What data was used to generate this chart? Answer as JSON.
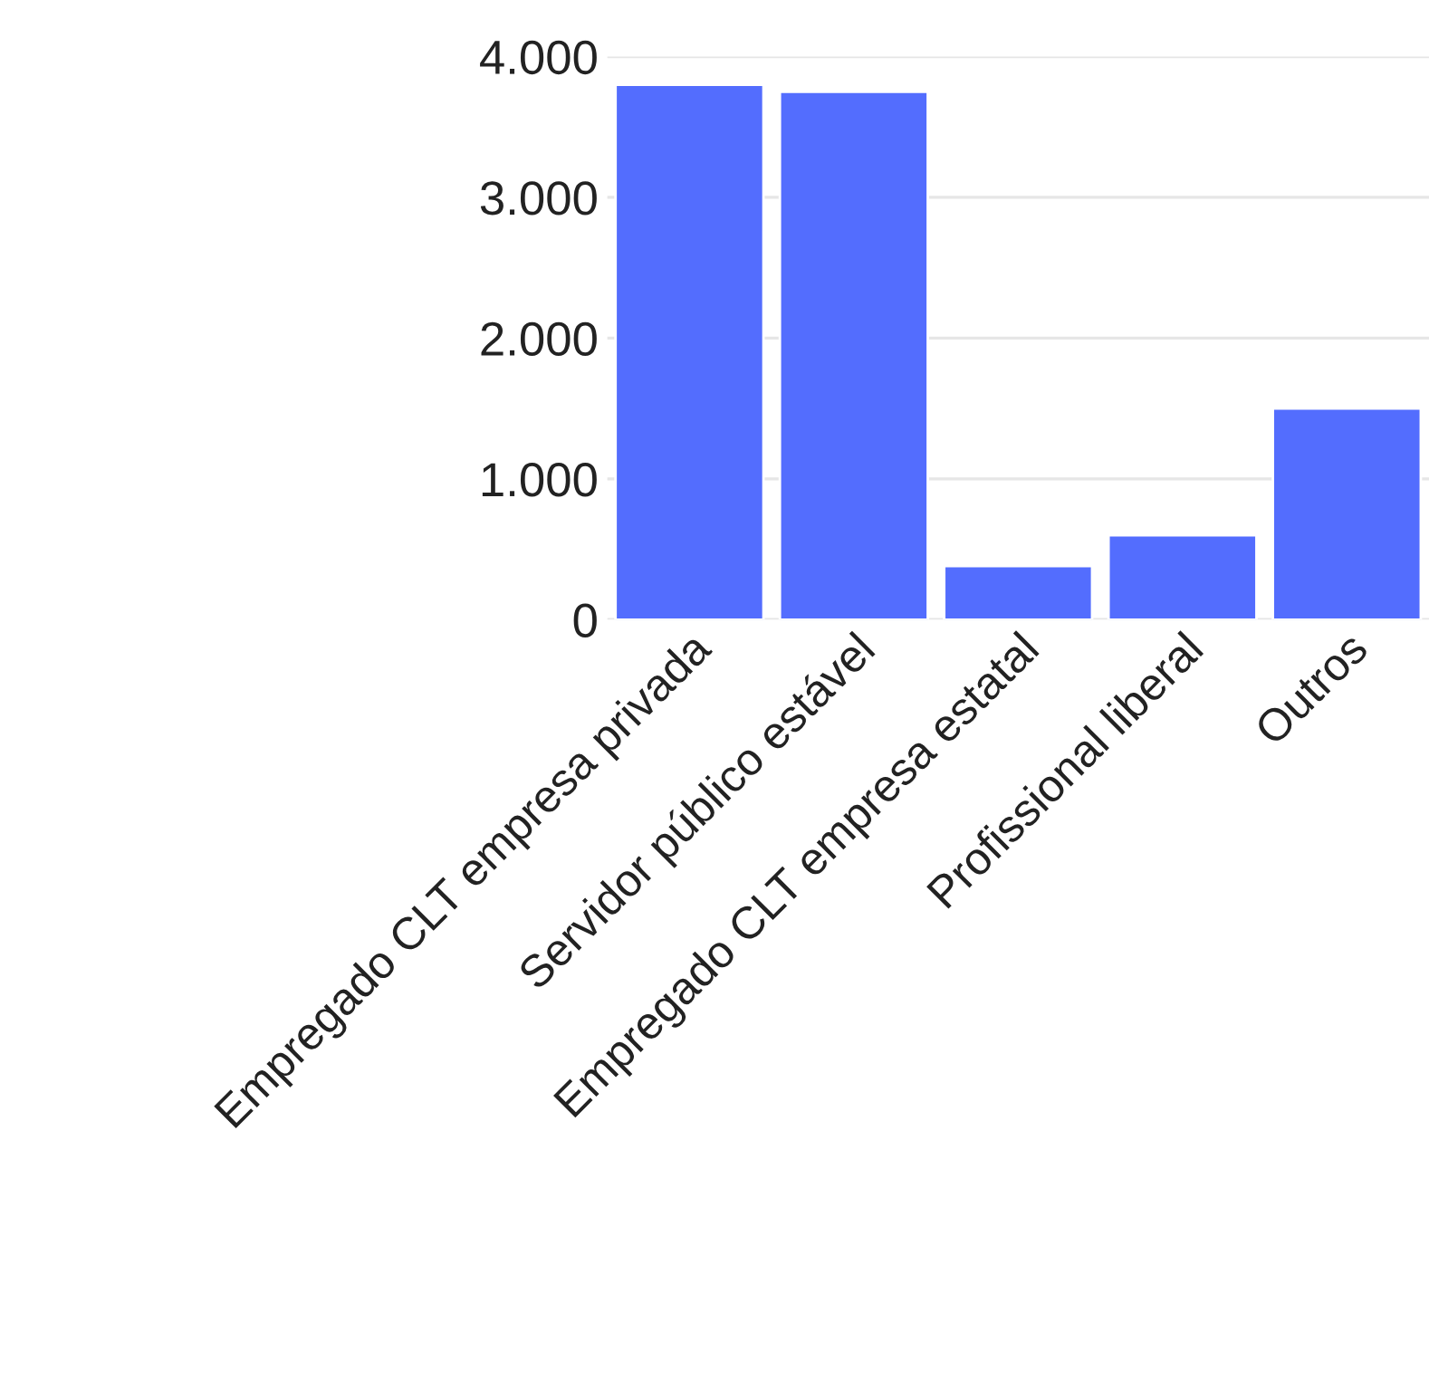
{
  "chart_data": {
    "type": "bar",
    "categories": [
      "Empregado CLT empresa privada",
      "Servidor público estável",
      "Empregado CLT empresa estatal",
      "Profissional liberal",
      "Outros"
    ],
    "values": [
      3800,
      3750,
      380,
      600,
      1500
    ],
    "color": "#536dfe",
    "ylim": [
      0,
      4000
    ],
    "yticks": [
      {
        "value": 0,
        "label": "0"
      },
      {
        "value": 1000,
        "label": "1.000"
      },
      {
        "value": 2000,
        "label": "2.000"
      },
      {
        "value": 3000,
        "label": "3.000"
      },
      {
        "value": 4000,
        "label": "4.000"
      }
    ],
    "grid": "y"
  }
}
